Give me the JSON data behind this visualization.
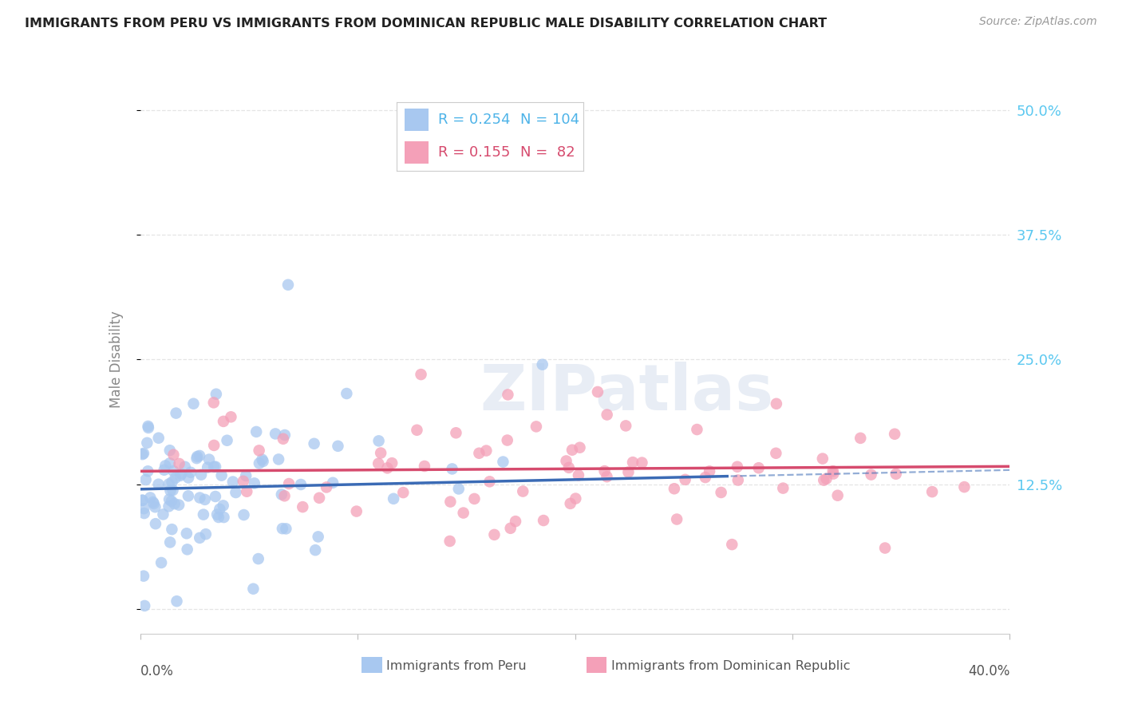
{
  "title": "IMMIGRANTS FROM PERU VS IMMIGRANTS FROM DOMINICAN REPUBLIC MALE DISABILITY CORRELATION CHART",
  "source": "Source: ZipAtlas.com",
  "ylabel": "Male Disability",
  "xlim": [
    0.0,
    0.4
  ],
  "ylim": [
    -0.025,
    0.525
  ],
  "yticks": [
    0.0,
    0.125,
    0.25,
    0.375,
    0.5
  ],
  "ytick_labels": [
    "",
    "12.5%",
    "25.0%",
    "37.5%",
    "50.0%"
  ],
  "xticks": [
    0.0,
    0.1,
    0.2,
    0.3,
    0.4
  ],
  "series": [
    {
      "label": "Immigrants from Peru",
      "R": 0.254,
      "N": 104,
      "scatter_color": "#a8c8f0",
      "line_color": "#3b6bb5"
    },
    {
      "label": "Immigrants from Dominican Republic",
      "R": 0.155,
      "N": 82,
      "scatter_color": "#f4a0b8",
      "line_color": "#d64b6e"
    }
  ],
  "watermark_text": "ZIPatlas",
  "watermark_color": "#cdd8ea",
  "bg_color": "#ffffff",
  "grid_color": "#e5e5e5",
  "title_color": "#222222",
  "right_tick_color": "#5bc8f0",
  "source_color": "#999999",
  "legend_border_color": "#cccccc",
  "peru_line_solid_end": 0.27,
  "peru_line_dash_start": 0.25,
  "peru_line_dash_end": 0.4,
  "peru_reg_slope": 0.048,
  "peru_reg_intercept": 0.12,
  "dr_reg_slope": 0.012,
  "dr_reg_intercept": 0.138
}
